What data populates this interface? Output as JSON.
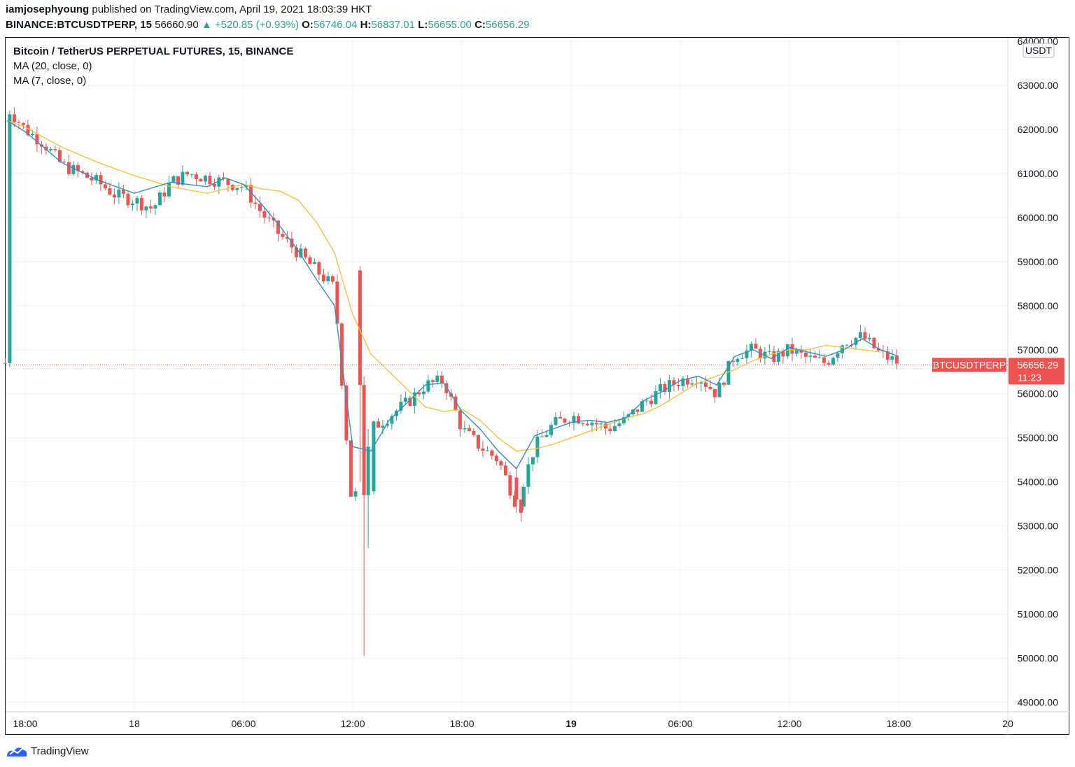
{
  "header": {
    "author": "iamjosephyoung",
    "published_text": "published on TradingView.com, April 19, 2021 18:03:39 HKT",
    "symbol": "BINANCE:BTCUSDTPERP, 15",
    "last": "56660.90",
    "change": "▲ +520.85 (+0.93%)",
    "o_label": "O:",
    "o_value": "56746.04",
    "h_label": "H:",
    "h_value": "56837.01",
    "l_label": "L:",
    "l_value": "56655.00",
    "c_label": "C:",
    "c_value": "56656.29"
  },
  "legend": {
    "title": "Bitcoin / TetherUS PERPETUAL FUTURES, 15, BINANCE",
    "ma20": "MA (20, close, 0)",
    "ma7": "MA (7, close, 0)"
  },
  "footer": {
    "brand": "TradingView"
  },
  "colors": {
    "up": "#26a69a",
    "down": "#ef5350",
    "ma20": "#f5c242",
    "ma7": "#2e8fc7",
    "grid": "#f0f3fa"
  },
  "chart_data": {
    "type": "candlestick",
    "title": "Bitcoin / TetherUS PERPETUAL FUTURES, 15, BINANCE",
    "currency": "USDT",
    "ylim": [
      48800,
      64000
    ],
    "y_ticks": [
      "64000.00",
      "63000.00",
      "62000.00",
      "61000.00",
      "60000.00",
      "59000.00",
      "58000.00",
      "57000.00",
      "56000.00",
      "55000.00",
      "54000.00",
      "53000.00",
      "52000.00",
      "51000.00",
      "50000.00",
      "49000.00"
    ],
    "y_tick_values": [
      64000,
      63000,
      62000,
      61000,
      60000,
      59000,
      58000,
      57000,
      56000,
      55000,
      54000,
      53000,
      52000,
      51000,
      50000,
      49000
    ],
    "x_ticks": [
      {
        "label": "18:00",
        "hour": 0,
        "bold": false
      },
      {
        "label": "18",
        "hour": 6,
        "bold": false
      },
      {
        "label": "06:00",
        "hour": 12,
        "bold": false
      },
      {
        "label": "12:00",
        "hour": 18,
        "bold": false
      },
      {
        "label": "18:00",
        "hour": 24,
        "bold": false
      },
      {
        "label": "19",
        "hour": 30,
        "bold": true
      },
      {
        "label": "06:00",
        "hour": 36,
        "bold": false
      },
      {
        "label": "12:00",
        "hour": 42,
        "bold": false
      },
      {
        "label": "18:00",
        "hour": 48,
        "bold": false
      },
      {
        "label": "20",
        "hour": 54,
        "bold": false
      }
    ],
    "price_tag": {
      "symbol": "BTCUSDTPERP",
      "price": "56656.29",
      "countdown": "11:23",
      "value": 56656.29
    },
    "series_ma20": [
      [
        -1,
        62200
      ],
      [
        0,
        62050
      ],
      [
        2,
        61600
      ],
      [
        4,
        61250
      ],
      [
        6,
        60950
      ],
      [
        8,
        60700
      ],
      [
        10,
        60550
      ],
      [
        12,
        60750
      ],
      [
        13,
        60650
      ],
      [
        14,
        60600
      ],
      [
        15,
        60400
      ],
      [
        16,
        59900
      ],
      [
        17,
        59200
      ],
      [
        18,
        57800
      ],
      [
        19,
        56900
      ],
      [
        20,
        56500
      ],
      [
        21,
        56100
      ],
      [
        22,
        55700
      ],
      [
        23,
        55600
      ],
      [
        24,
        55650
      ],
      [
        25,
        55400
      ],
      [
        26,
        55000
      ],
      [
        27,
        54700
      ],
      [
        28,
        54750
      ],
      [
        29,
        54850
      ],
      [
        30,
        55000
      ],
      [
        31,
        55150
      ],
      [
        32,
        55300
      ],
      [
        33,
        55450
      ],
      [
        34,
        55550
      ],
      [
        35,
        55750
      ],
      [
        36,
        56000
      ],
      [
        37,
        56250
      ],
      [
        38,
        56400
      ],
      [
        39,
        56550
      ],
      [
        40,
        56750
      ],
      [
        41,
        56900
      ],
      [
        42,
        57000
      ],
      [
        43,
        57000
      ],
      [
        44,
        57100
      ],
      [
        45,
        57050
      ],
      [
        46,
        57000
      ],
      [
        47,
        56950
      ]
    ],
    "series_ma7": [
      [
        -1,
        62200
      ],
      [
        0,
        61950
      ],
      [
        2,
        61250
      ],
      [
        4,
        60850
      ],
      [
        6,
        60550
      ],
      [
        8,
        60800
      ],
      [
        10,
        60700
      ],
      [
        11,
        60900
      ],
      [
        12,
        60750
      ],
      [
        13,
        60300
      ],
      [
        14,
        59800
      ],
      [
        15,
        59250
      ],
      [
        16,
        58600
      ],
      [
        17,
        58000
      ],
      [
        18,
        54800
      ],
      [
        19,
        54700
      ],
      [
        20,
        55400
      ],
      [
        21,
        55800
      ],
      [
        22,
        56200
      ],
      [
        23,
        56250
      ],
      [
        24,
        55600
      ],
      [
        25,
        55200
      ],
      [
        26,
        54700
      ],
      [
        27,
        54300
      ],
      [
        28,
        55050
      ],
      [
        29,
        55200
      ],
      [
        30,
        55350
      ],
      [
        31,
        55400
      ],
      [
        32,
        55350
      ],
      [
        33,
        55450
      ],
      [
        34,
        55850
      ],
      [
        35,
        56050
      ],
      [
        36,
        56300
      ],
      [
        37,
        56400
      ],
      [
        38,
        56200
      ],
      [
        39,
        56850
      ],
      [
        40,
        57000
      ],
      [
        41,
        56800
      ],
      [
        42,
        57050
      ],
      [
        43,
        56950
      ],
      [
        44,
        56850
      ],
      [
        45,
        57000
      ],
      [
        46,
        57250
      ],
      [
        47,
        57000
      ],
      [
        48,
        56850
      ]
    ],
    "candle_anchors": [
      [
        -1,
        62500
      ],
      [
        0,
        62000
      ],
      [
        1,
        61700
      ],
      [
        2,
        61200
      ],
      [
        3,
        61000
      ],
      [
        4,
        60800
      ],
      [
        5,
        60500
      ],
      [
        6,
        60400
      ],
      [
        7,
        60200
      ],
      [
        8,
        60800
      ],
      [
        9,
        61000
      ],
      [
        10,
        60900
      ],
      [
        11,
        60800
      ],
      [
        12,
        60700
      ],
      [
        13,
        60100
      ],
      [
        14,
        59600
      ],
      [
        15,
        59200
      ],
      [
        16,
        58800
      ],
      [
        17,
        58400
      ],
      [
        18,
        53200
      ],
      [
        18.5,
        54900
      ],
      [
        19,
        55200
      ],
      [
        20,
        55500
      ],
      [
        21,
        55800
      ],
      [
        22,
        56200
      ],
      [
        23,
        56300
      ],
      [
        24,
        55200
      ],
      [
        25,
        54800
      ],
      [
        26,
        54500
      ],
      [
        27,
        53500
      ],
      [
        28,
        54800
      ],
      [
        29,
        55300
      ],
      [
        30,
        55500
      ],
      [
        31,
        55400
      ],
      [
        32,
        55200
      ],
      [
        33,
        55400
      ],
      [
        34,
        55800
      ],
      [
        35,
        56100
      ],
      [
        36,
        56300
      ],
      [
        37,
        56400
      ],
      [
        38,
        56000
      ],
      [
        39,
        56900
      ],
      [
        40,
        57000
      ],
      [
        41,
        56800
      ],
      [
        42,
        57000
      ],
      [
        43,
        56800
      ],
      [
        44,
        56700
      ],
      [
        45,
        57200
      ],
      [
        46,
        57300
      ],
      [
        47,
        56900
      ],
      [
        48,
        56700
      ]
    ],
    "special_candles": [
      {
        "hour": 18.4,
        "open": 58800,
        "close": 56200,
        "high": 58900,
        "low": 54000
      },
      {
        "hour": 18.62,
        "open": 56200,
        "close": 53700,
        "high": 56400,
        "low": 50050
      },
      {
        "hour": 18.85,
        "open": 53700,
        "close": 54800,
        "high": 55200,
        "low": 52500
      },
      {
        "hour": 27.0,
        "open": 54100,
        "close": 53600,
        "high": 54300,
        "low": 53300
      },
      {
        "hour": 27.25,
        "open": 53600,
        "close": 53300,
        "high": 53900,
        "low": 53100
      }
    ]
  }
}
